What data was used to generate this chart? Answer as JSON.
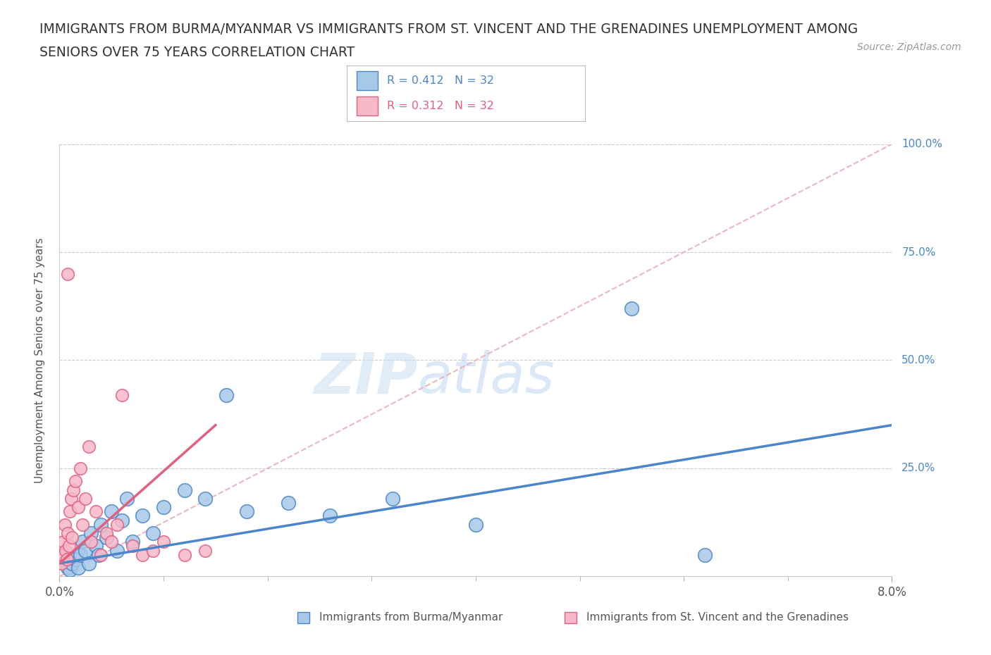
{
  "title_line1": "IMMIGRANTS FROM BURMA/MYANMAR VS IMMIGRANTS FROM ST. VINCENT AND THE GRENADINES UNEMPLOYMENT AMONG",
  "title_line2": "SENIORS OVER 75 YEARS CORRELATION CHART",
  "source_text": "Source: ZipAtlas.com",
  "ylabel": "Unemployment Among Seniors over 75 years",
  "x_min": 0.0,
  "x_max": 8.0,
  "y_min": 0.0,
  "y_max": 100.0,
  "blue_label": "Immigrants from Burma/Myanmar",
  "pink_label": "Immigrants from St. Vincent and the Grenadines",
  "r_blue": "0.412",
  "n_blue": "32",
  "r_pink": "0.312",
  "n_pink": "32",
  "blue_color": "#a8c8e8",
  "blue_dark": "#4a86c8",
  "pink_color": "#f8b8c8",
  "pink_dark": "#e06080",
  "blue_scatter_x": [
    0.08,
    0.1,
    0.12,
    0.15,
    0.18,
    0.2,
    0.22,
    0.25,
    0.28,
    0.3,
    0.35,
    0.38,
    0.4,
    0.45,
    0.5,
    0.55,
    0.6,
    0.65,
    0.7,
    0.8,
    0.9,
    1.0,
    1.2,
    1.4,
    1.6,
    1.8,
    2.2,
    2.6,
    3.2,
    4.0,
    5.5,
    6.2
  ],
  "blue_scatter_y": [
    2.0,
    1.5,
    3.0,
    4.0,
    2.0,
    5.0,
    8.0,
    6.0,
    3.0,
    10.0,
    7.0,
    5.0,
    12.0,
    9.0,
    15.0,
    6.0,
    13.0,
    18.0,
    8.0,
    14.0,
    10.0,
    16.0,
    20.0,
    18.0,
    42.0,
    15.0,
    17.0,
    14.0,
    18.0,
    12.0,
    62.0,
    5.0
  ],
  "pink_scatter_x": [
    0.02,
    0.03,
    0.04,
    0.05,
    0.06,
    0.07,
    0.08,
    0.09,
    0.1,
    0.11,
    0.12,
    0.13,
    0.15,
    0.18,
    0.2,
    0.22,
    0.25,
    0.28,
    0.3,
    0.35,
    0.4,
    0.45,
    0.5,
    0.55,
    0.6,
    0.7,
    0.8,
    0.9,
    1.0,
    1.2,
    1.4,
    0.08
  ],
  "pink_scatter_y": [
    3.0,
    5.0,
    8.0,
    12.0,
    6.0,
    4.0,
    10.0,
    7.0,
    15.0,
    18.0,
    9.0,
    20.0,
    22.0,
    16.0,
    25.0,
    12.0,
    18.0,
    30.0,
    8.0,
    15.0,
    5.0,
    10.0,
    8.0,
    12.0,
    42.0,
    7.0,
    5.0,
    6.0,
    8.0,
    5.0,
    6.0,
    70.0
  ],
  "pink_outlier_x": 0.05,
  "pink_outlier_y": 42.0,
  "ref_line_color": "#e8b0b8",
  "watermark_zip": "ZIP",
  "watermark_atlas": "atlas",
  "background_color": "#ffffff",
  "grid_color": "#cccccc"
}
